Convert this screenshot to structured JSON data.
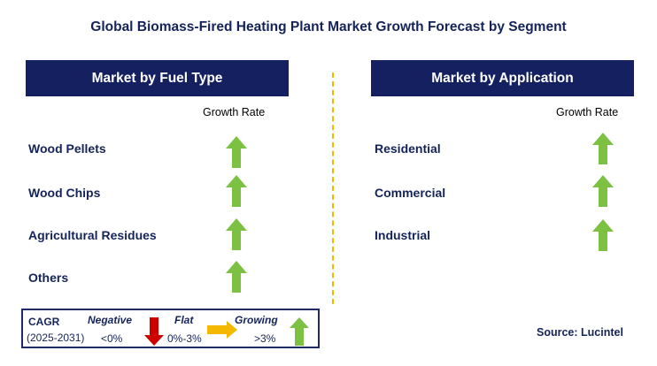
{
  "title": "Global Biomass-Fired Heating Plant Market Growth Forecast by Segment",
  "left_panel": {
    "header": "Market by Fuel Type",
    "growth_rate_label": "Growth Rate",
    "rows": [
      {
        "label": "Wood Pellets",
        "trend": "growing"
      },
      {
        "label": "Wood Chips",
        "trend": "growing"
      },
      {
        "label": "Agricultural Residues",
        "trend": "growing"
      },
      {
        "label": "Others",
        "trend": "growing"
      }
    ]
  },
  "right_panel": {
    "header": "Market by Application",
    "growth_rate_label": "Growth Rate",
    "rows": [
      {
        "label": "Residential",
        "trend": "growing"
      },
      {
        "label": "Commercial",
        "trend": "growing"
      },
      {
        "label": "Industrial",
        "trend": "growing"
      }
    ]
  },
  "legend": {
    "cagr_label": "CAGR",
    "period": "(2025-2031)",
    "negative_label": "Negative",
    "negative_range": "<0%",
    "flat_label": "Flat",
    "flat_range": "0%-3%",
    "growing_label": "Growing",
    "growing_range": ">3%"
  },
  "source": "Source: Lucintel",
  "colors": {
    "header_bg": "#152060",
    "text": "#14245a",
    "growing_arrow": "#7dc142",
    "negative_arrow": "#cc0000",
    "flat_arrow": "#f5b800",
    "divider": "#f5b800"
  }
}
